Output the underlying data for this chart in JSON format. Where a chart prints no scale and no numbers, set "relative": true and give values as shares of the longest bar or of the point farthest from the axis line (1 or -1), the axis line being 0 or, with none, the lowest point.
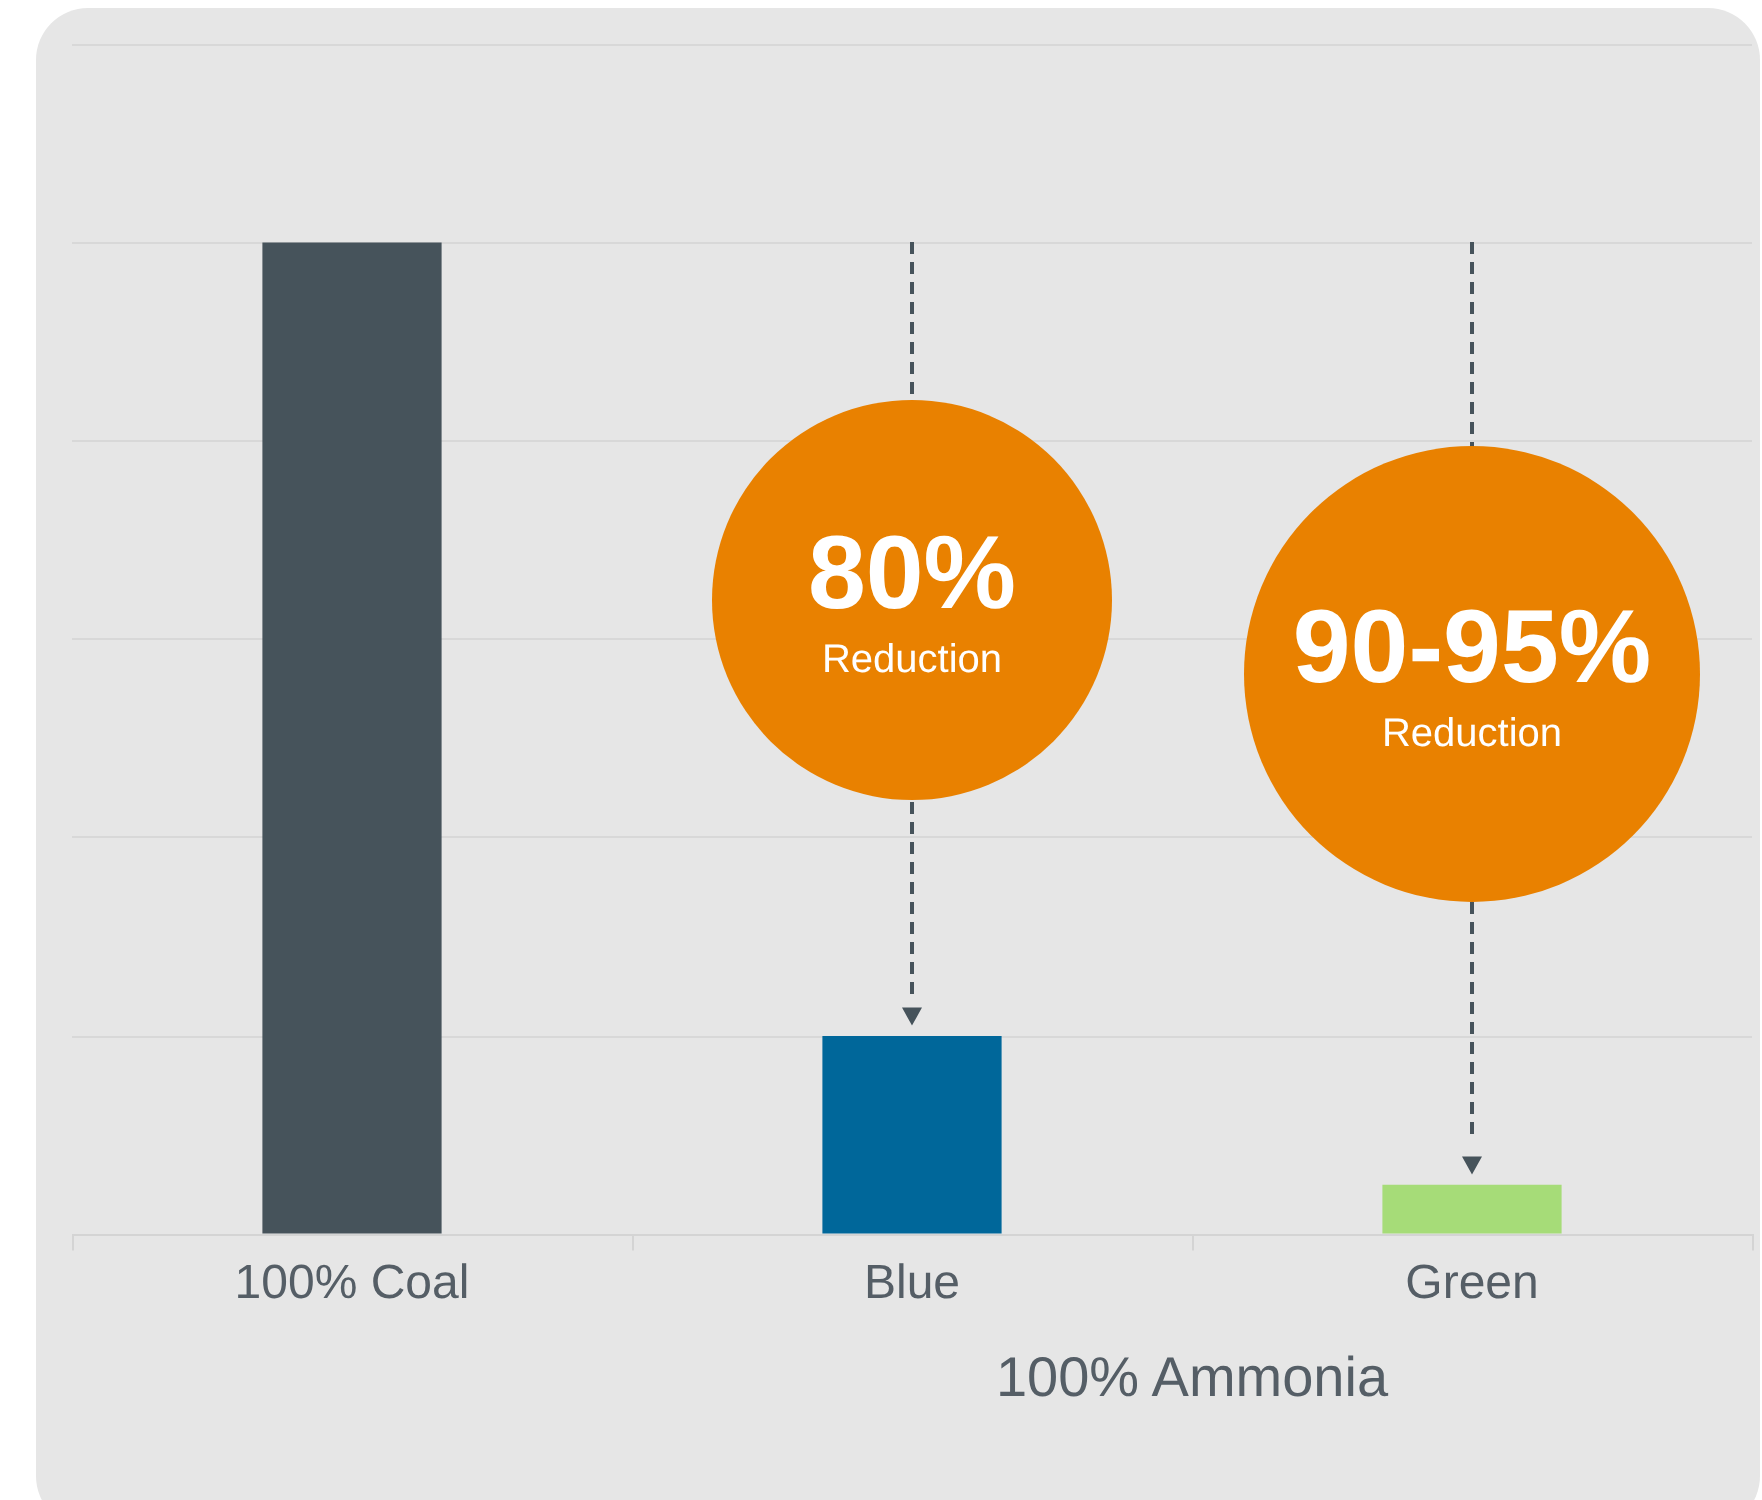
{
  "chart_data": {
    "type": "bar",
    "relative": true,
    "categories": [
      "100% Coal",
      "Blue",
      "Green"
    ],
    "values": [
      1,
      0.2,
      0.05
    ],
    "colors": [
      "#46535b",
      "#00679a",
      "#a6dc78"
    ],
    "xlabel": "100% Ammonia",
    "grid": "y",
    "annotations": [
      "80% Reduction",
      "90-95% Reduction"
    ]
  }
}
